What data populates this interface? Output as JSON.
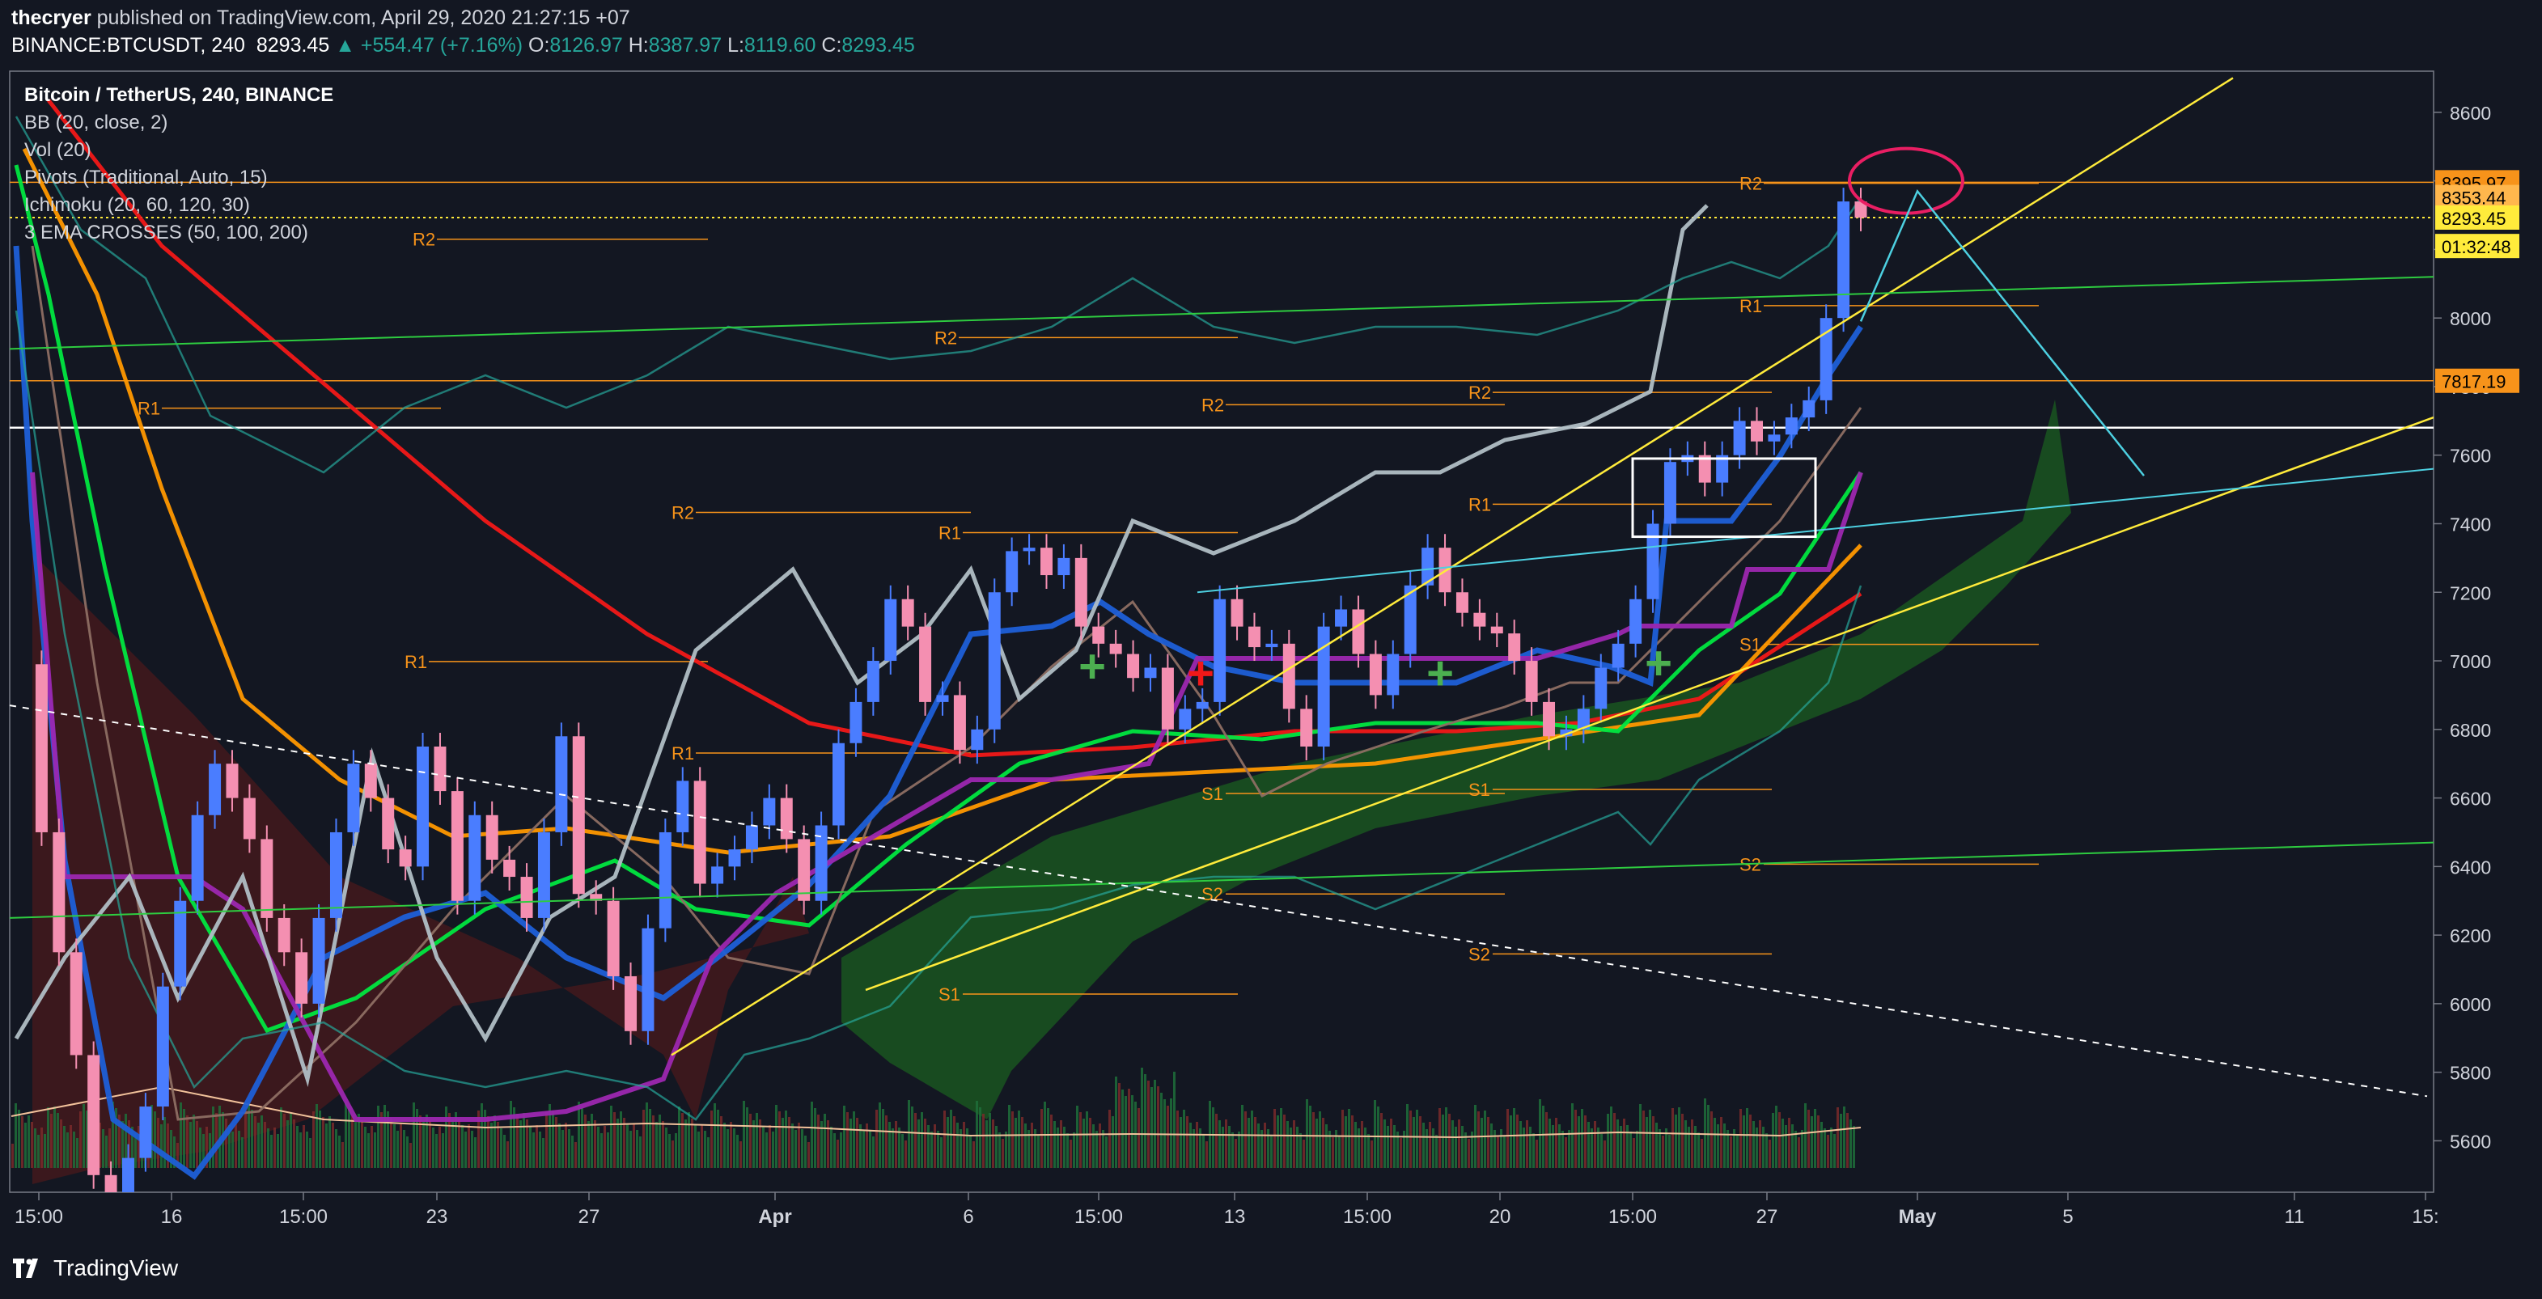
{
  "header": {
    "author": "thecryer",
    "published_text": " published on TradingView.com, April 29, 2020 21:27:15 +07",
    "symbol": "BINANCE:BTCUSDT, 240",
    "last": "8293.45",
    "change": "▲ +554.47 (+7.16%)",
    "o_label": "O:",
    "o_val": "8126.97",
    "h_label": "H:",
    "h_val": "8387.97",
    "l_label": "L:",
    "l_val": "8119.60",
    "c_label": "C:",
    "c_val": "8293.45"
  },
  "legend": {
    "title": "Bitcoin / TetherUS, 240, BINANCE",
    "items": [
      "BB (20, close, 2)",
      "Vol (20)",
      "Pivots (Traditional, Auto, 15)",
      "Ichimoku (20, 60, 120, 30)",
      "3 EMA CROSSES (50, 100, 200)"
    ]
  },
  "footer": {
    "brand": "TradingView"
  },
  "colors": {
    "background": "#131722",
    "up": "#26a69a",
    "down": "#ef5350",
    "pivot": "#f7931a",
    "ema50": "#00e640",
    "ema100": "#ff9800",
    "ema200": "#f21818",
    "baseline": "#1e5fd8",
    "kumo_bull": "#1b5e20",
    "kumo_bear": "#5c1a1a"
  },
  "chart_data": {
    "type": "candlestick",
    "symbol": "BTCUSDT",
    "interval": "240",
    "y_ticks": [
      5600,
      5800,
      6000,
      6200,
      6400,
      6600,
      6800,
      7000,
      7200,
      7400,
      7600,
      7800,
      8000,
      8200,
      8400,
      8600
    ],
    "ylim": [
      5450,
      8720
    ],
    "x_ticks": [
      "15:00",
      "16",
      "15:00",
      "23",
      "27",
      "Apr",
      "6",
      "15:00",
      "13",
      "15:00",
      "20",
      "15:00",
      "27",
      "May",
      "5",
      "11",
      "15:"
    ],
    "price_badges": [
      {
        "value": "8395.97",
        "color": "#f7931a",
        "text_color": "#000000"
      },
      {
        "value": "8353.44",
        "color": "#ffb74d",
        "text_color": "#000000"
      },
      {
        "value": "8293.45",
        "color": "#ffeb3b",
        "text_color": "#000000"
      },
      {
        "value": "01:32:48",
        "color": "#ffeb3b",
        "text_color": "#000000"
      },
      {
        "value": "7817.19",
        "color": "#f7931a",
        "text_color": "#000000"
      }
    ],
    "close_series": [
      6990,
      6500,
      6150,
      5850,
      5500,
      5400,
      5550,
      5700,
      6050,
      6300,
      6550,
      6700,
      6600,
      6480,
      6250,
      6150,
      6000,
      6250,
      6500,
      6700,
      6600,
      6450,
      6400,
      6750,
      6620,
      6300,
      6550,
      6420,
      6370,
      6250,
      6500,
      6780,
      6320,
      6300,
      6080,
      5920,
      6220,
      6500,
      6650,
      6350,
      6400,
      6450,
      6520,
      6600,
      6480,
      6300,
      6520,
      6760,
      6880,
      7000,
      7180,
      7100,
      6880,
      6900,
      6740,
      6800,
      7200,
      7320,
      7330,
      7250,
      7300,
      7100,
      7050,
      7020,
      6950,
      6980,
      6800,
      6860,
      6880,
      7180,
      7100,
      7040,
      7050,
      6860,
      6750,
      7100,
      7150,
      7020,
      6900,
      7020,
      7220,
      7330,
      7200,
      7140,
      7100,
      7080,
      7000,
      6880,
      6780,
      6800,
      6860,
      6980,
      7050,
      7180,
      7400,
      7580,
      7600,
      7520,
      7600,
      7700,
      7640,
      7660,
      7710,
      7760,
      8000,
      8340,
      8293
    ]
  }
}
